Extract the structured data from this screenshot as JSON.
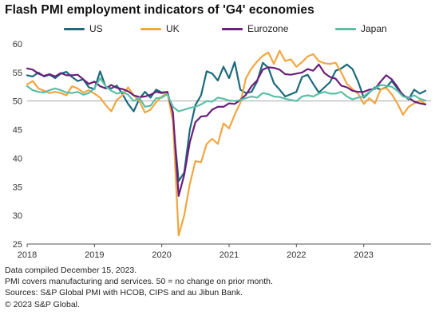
{
  "title": "Flash PMI employment indicators of 'G4' economies",
  "legend": [
    {
      "name": "US",
      "color": "#1a6a7c"
    },
    {
      "name": "UK",
      "color": "#f2a640"
    },
    {
      "name": "Eurozone",
      "color": "#6b1f7c"
    },
    {
      "name": "Japan",
      "color": "#5bbfa6"
    }
  ],
  "footnotes": [
    "Data compiled December 15, 2023.",
    "PMI covers manufacturing and services. 50 = no change on prior month.",
    "Sources: S&P Global PMI with HCOB, CIPS and au Jibun Bank.",
    "© 2023 S&P Global."
  ],
  "chart_data": {
    "type": "line",
    "title": "Flash PMI employment indicators of 'G4' economies",
    "xlabel": "",
    "ylabel": "",
    "ylim": [
      25,
      60
    ],
    "yticks": [
      25,
      30,
      35,
      40,
      45,
      50,
      55,
      60
    ],
    "xticks": [
      "2018",
      "2019",
      "2020",
      "2021",
      "2022",
      "2023"
    ],
    "reference_line": 50,
    "grid": false,
    "legend_position": "top",
    "x": [
      "2018-01",
      "2018-02",
      "2018-03",
      "2018-04",
      "2018-05",
      "2018-06",
      "2018-07",
      "2018-08",
      "2018-09",
      "2018-10",
      "2018-11",
      "2018-12",
      "2019-01",
      "2019-02",
      "2019-03",
      "2019-04",
      "2019-05",
      "2019-06",
      "2019-07",
      "2019-08",
      "2019-09",
      "2019-10",
      "2019-11",
      "2019-12",
      "2020-01",
      "2020-02",
      "2020-03",
      "2020-04",
      "2020-05",
      "2020-06",
      "2020-07",
      "2020-08",
      "2020-09",
      "2020-10",
      "2020-11",
      "2020-12",
      "2021-01",
      "2021-02",
      "2021-03",
      "2021-04",
      "2021-05",
      "2021-06",
      "2021-07",
      "2021-08",
      "2021-09",
      "2021-10",
      "2021-11",
      "2021-12",
      "2022-01",
      "2022-02",
      "2022-03",
      "2022-04",
      "2022-05",
      "2022-06",
      "2022-07",
      "2022-08",
      "2022-09",
      "2022-10",
      "2022-11",
      "2022-12",
      "2023-01",
      "2023-02",
      "2023-03",
      "2023-04",
      "2023-05",
      "2023-06",
      "2023-07",
      "2023-08",
      "2023-09",
      "2023-10",
      "2023-11",
      "2023-12"
    ],
    "series": [
      {
        "name": "US",
        "color": "#1a6a7c",
        "values": [
          54.5,
          54.3,
          55.0,
          54.3,
          54.6,
          54.0,
          54.8,
          55.1,
          54.2,
          53.5,
          53.8,
          52.4,
          52.1,
          55.2,
          52.5,
          52.2,
          52.7,
          51.2,
          49.5,
          48.2,
          50.4,
          51.6,
          50.6,
          52.0,
          51.5,
          51.6,
          46.7,
          36.0,
          37.5,
          45.0,
          49.3,
          51.0,
          55.2,
          54.8,
          53.6,
          56.0,
          54.0,
          56.8,
          52.0,
          51.4,
          51.6,
          53.4,
          56.7,
          55.8,
          53.1,
          52.0,
          50.8,
          51.2,
          51.6,
          54.2,
          54.6,
          53.0,
          51.5,
          52.4,
          53.3,
          55.3,
          55.7,
          56.4,
          55.6,
          53.4,
          50.6,
          51.5,
          52.4,
          52.0,
          52.4,
          53.5,
          52.2,
          51.1,
          50.3,
          52.0,
          51.3,
          51.8
        ]
      },
      {
        "name": "UK",
        "color": "#f2a640",
        "values": [
          52.9,
          53.5,
          52.2,
          51.8,
          51.4,
          51.6,
          51.4,
          51.0,
          52.6,
          52.2,
          51.5,
          51.9,
          51.3,
          50.6,
          49.3,
          48.2,
          50.2,
          51.0,
          52.4,
          51.0,
          50.0,
          48.0,
          48.5,
          49.8,
          50.8,
          51.5,
          46.4,
          26.5,
          30.0,
          35.5,
          39.5,
          39.3,
          42.5,
          43.4,
          42.5,
          46.1,
          45.2,
          47.6,
          49.7,
          54.0,
          55.7,
          56.9,
          57.9,
          58.5,
          56.5,
          58.8,
          57.0,
          57.3,
          56.0,
          56.8,
          57.8,
          58.2,
          57.0,
          56.6,
          56.5,
          56.7,
          55.0,
          53.0,
          52.1,
          51.3,
          49.5,
          50.5,
          49.6,
          52.0,
          52.3,
          51.2,
          49.6,
          47.6,
          49.0,
          49.6,
          50.1,
          49.5
        ]
      },
      {
        "name": "Eurozone",
        "color": "#6b1f7c",
        "values": [
          55.7,
          55.5,
          54.8,
          54.4,
          54.7,
          54.3,
          54.9,
          54.5,
          54.5,
          54.6,
          53.8,
          53.0,
          53.4,
          52.6,
          52.2,
          52.8,
          52.3,
          52.1,
          51.7,
          51.0,
          50.7,
          50.8,
          51.1,
          51.6,
          51.4,
          51.6,
          48.0,
          33.4,
          37.1,
          42.8,
          46.3,
          47.3,
          47.4,
          48.5,
          49.0,
          49.0,
          49.6,
          49.5,
          50.2,
          51.1,
          52.6,
          53.6,
          55.5,
          55.9,
          55.8,
          55.5,
          54.7,
          54.6,
          54.8,
          55.0,
          55.6,
          55.3,
          56.4,
          54.9,
          54.2,
          53.9,
          52.7,
          52.4,
          51.8,
          51.6,
          51.6,
          52.0,
          52.1,
          53.4,
          54.5,
          53.8,
          52.5,
          50.9,
          50.6,
          49.9,
          49.6,
          49.4
        ]
      },
      {
        "name": "Japan",
        "color": "#5bbfa6",
        "values": [
          52.6,
          51.9,
          51.6,
          51.5,
          51.9,
          52.2,
          51.9,
          51.5,
          51.4,
          51.6,
          51.1,
          51.4,
          52.2,
          54.0,
          52.6,
          51.8,
          51.3,
          51.6,
          51.1,
          50.0,
          50.6,
          49.0,
          49.2,
          50.5,
          50.6,
          51.2,
          49.0,
          48.2,
          48.5,
          48.8,
          49.0,
          49.4,
          50.0,
          49.9,
          50.6,
          50.4,
          50.1,
          50.0,
          50.2,
          50.5,
          50.8,
          50.6,
          51.4,
          51.2,
          50.8,
          50.7,
          50.4,
          50.2,
          50.0,
          50.8,
          51.0,
          50.8,
          51.3,
          51.6,
          51.3,
          51.3,
          51.6,
          50.8,
          50.3,
          50.6,
          50.8,
          51.6,
          52.2,
          52.8,
          52.7,
          52.5,
          51.8,
          50.8,
          50.5,
          51.0,
          50.4,
          50.1
        ]
      }
    ]
  }
}
